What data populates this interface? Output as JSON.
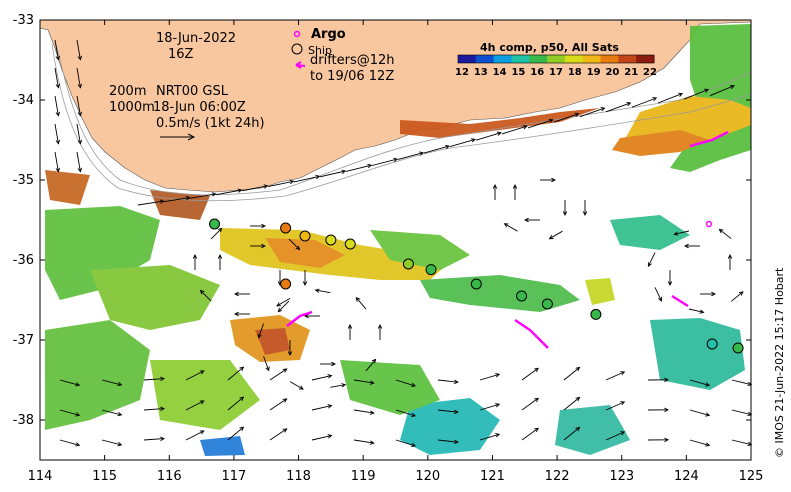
{
  "map": {
    "lon_range": [
      114,
      125
    ],
    "lat_range": [
      -38.5,
      -33
    ],
    "lon_ticks": [
      "114",
      "115",
      "116",
      "117",
      "118",
      "119",
      "120",
      "121",
      "122",
      "123",
      "124",
      "125"
    ],
    "lat_ticks": [
      "-33",
      "-34",
      "-35",
      "-36",
      "-37",
      "-38"
    ],
    "land_color": "#f9c79f",
    "ocean_color": "#ffffff"
  },
  "labels": {
    "date": "18-Jun-2022",
    "time": "16Z",
    "depth_200": "200m",
    "depth_1000": "1000m",
    "product": "NRT00 GSL",
    "product_time": "18-Jun 06:00Z",
    "scale": "0.5m/s (1kt 24h)"
  },
  "legend": {
    "argo": "Argo",
    "ship": "Ship",
    "drifters": "drifters@12h",
    "drifters2": "to 19/06 12Z",
    "argo_color": "#ff00ff",
    "drifter_color": "#ff00ff"
  },
  "colorbar": {
    "title": "4h comp, p50, All Sats",
    "ticks": [
      "12",
      "13",
      "14",
      "15",
      "16",
      "17",
      "18",
      "19",
      "20",
      "21",
      "22"
    ],
    "colors": [
      "#1a1a9c",
      "#0d4fd1",
      "#0a9ee0",
      "#1fc2a8",
      "#38b84a",
      "#8fcc25",
      "#d7dd1b",
      "#f0b814",
      "#e87a12",
      "#c4441a",
      "#8c1c10"
    ]
  },
  "credit": "© IMOS 21-Jun-2022 15:17 Hobart",
  "ships": [
    {
      "lon": 116.7,
      "lat": -35.55,
      "color": "#38b84a"
    },
    {
      "lon": 117.8,
      "lat": -35.6,
      "color": "#e87a12"
    },
    {
      "lon": 118.1,
      "lat": -35.7,
      "color": "#f0b814"
    },
    {
      "lon": 118.5,
      "lat": -35.75,
      "color": "#d7dd1b"
    },
    {
      "lon": 118.8,
      "lat": -35.8,
      "color": "#d7dd1b"
    },
    {
      "lon": 117.8,
      "lat": -36.3,
      "color": "#e87a12"
    },
    {
      "lon": 119.7,
      "lat": -36.05,
      "color": "#8fcc25"
    },
    {
      "lon": 120.05,
      "lat": -36.12,
      "color": "#38b84a"
    },
    {
      "lon": 120.75,
      "lat": -36.3,
      "color": "#38b84a"
    },
    {
      "lon": 121.45,
      "lat": -36.45,
      "color": "#38b84a"
    },
    {
      "lon": 121.85,
      "lat": -36.55,
      "color": "#38b84a"
    },
    {
      "lon": 122.6,
      "lat": -36.68,
      "color": "#38b84a"
    },
    {
      "lon": 124.4,
      "lat": -37.05,
      "color": "#1fc2a8"
    },
    {
      "lon": 124.8,
      "lat": -37.1,
      "color": "#38b84a"
    }
  ],
  "argo_floats": [
    {
      "lon": 124.35,
      "lat": -35.55
    }
  ]
}
